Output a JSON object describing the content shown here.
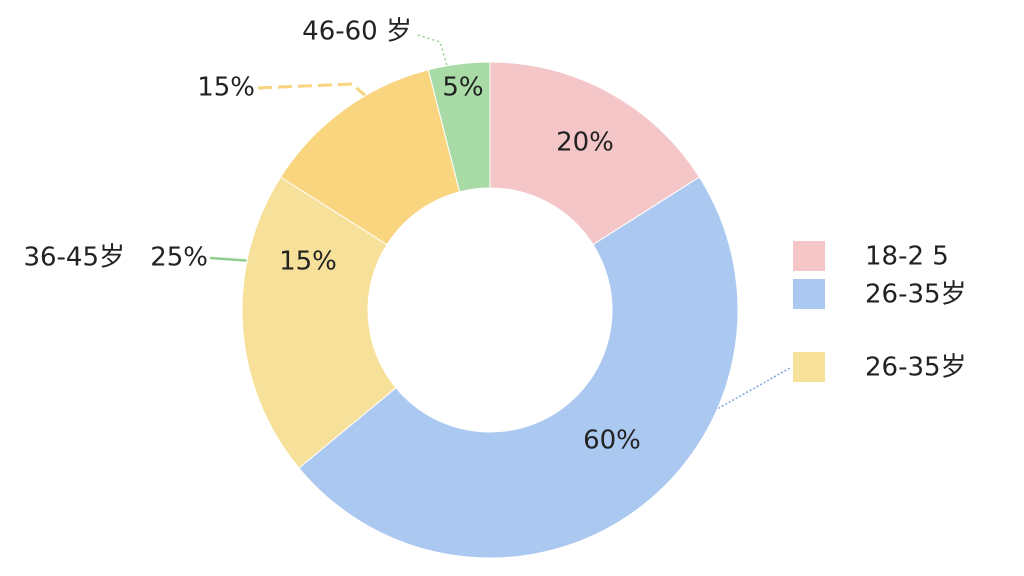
{
  "chart_data": {
    "type": "pie",
    "categories": [
      null,
      null,
      "36-45岁",
      null,
      "46-60 岁"
    ],
    "values": [
      20,
      60,
      25,
      15,
      5
    ],
    "value_labels": [
      "20%",
      "60%",
      "25%",
      "15%",
      "5%"
    ],
    "colors": [
      "#f5c6c8",
      "#abc9f0",
      "#f7e19a",
      "#f8d57e",
      "#a8dba6"
    ],
    "annotations": [
      "15%"
    ],
    "legend": [
      {
        "label": "18-2 5",
        "color": "#f5c6c8"
      },
      {
        "label": "26-35岁",
        "color": "#abc9f0"
      },
      {
        "label": "26-35岁",
        "color": "#f7e19a"
      }
    ]
  }
}
